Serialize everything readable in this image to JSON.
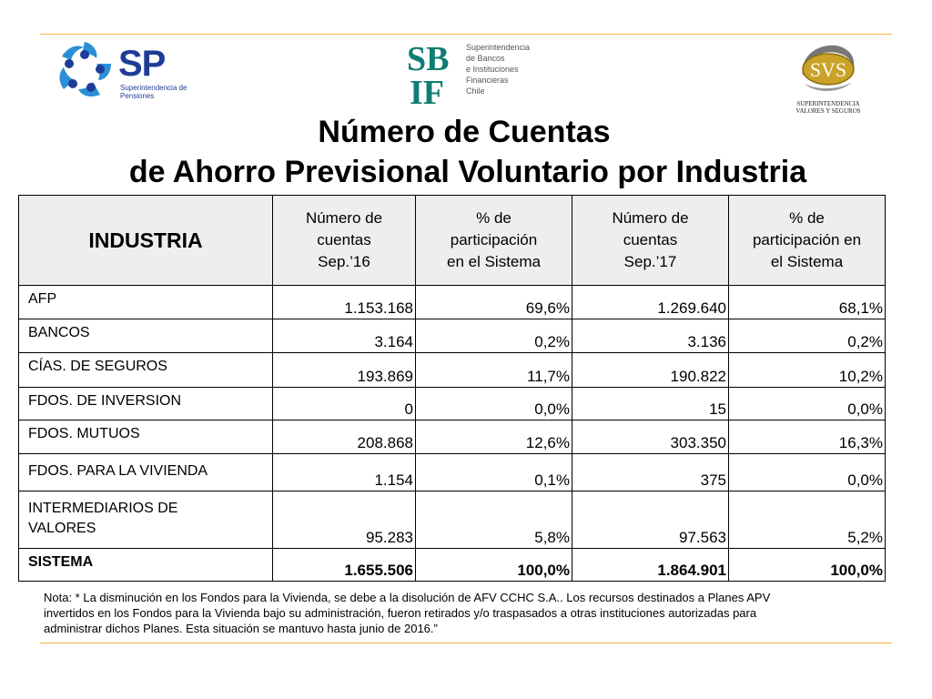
{
  "logos": {
    "sp": {
      "abbr": "SP",
      "subtitle_line1": "Superintendencia de",
      "subtitle_line2": "Pensiones",
      "icon": "hands-star-icon",
      "color": "#1e3c96"
    },
    "sbif": {
      "monogram_top": "SB",
      "monogram_bottom": "IF",
      "lines": [
        "Superintendencia",
        "de Bancos",
        "e Instituciones",
        "Financieras",
        "Chile"
      ],
      "color": "#0f7d72"
    },
    "svs": {
      "abbr": "SVS",
      "caption_line1": "SUPERINTENDENCIA",
      "caption_line2": "VALORES Y SEGUROS",
      "color": "#c9a227"
    }
  },
  "title": {
    "line1": "Número de Cuentas",
    "line2": "de Ahorro Previsional Voluntario por Industria"
  },
  "table": {
    "headers": {
      "industria": "INDUSTRIA",
      "col1": [
        "Número de",
        "cuentas",
        "Sep.’16"
      ],
      "col2": [
        "% de",
        "participación",
        "en el Sistema"
      ],
      "col3": [
        "Número de",
        "cuentas",
        "Sep.’17"
      ],
      "col4": [
        "% de",
        "participación en",
        "el Sistema"
      ]
    },
    "rows": [
      {
        "name": "AFP",
        "c1": "1.153.168",
        "c2": "69,6%",
        "c3": "1.269.640",
        "c4": "68,1%"
      },
      {
        "name": "BANCOS",
        "c1": "3.164",
        "c2": "0,2%",
        "c3": "3.136",
        "c4": "0,2%"
      },
      {
        "name": "CÍAS. DE SEGUROS",
        "c1": "193.869",
        "c2": "11,7%",
        "c3": "190.822",
        "c4": "10,2%"
      },
      {
        "name": "FDOS. DE INVERSION",
        "c1": "0",
        "c2": "0,0%",
        "c3": "15",
        "c4": "0,0%"
      },
      {
        "name": "FDOS. MUTUOS",
        "c1": "208.868",
        "c2": "12,6%",
        "c3": "303.350",
        "c4": "16,3%"
      },
      {
        "name": "FDOS. PARA LA VIVIENDA",
        "c1": "1.154",
        "c2": "0,1%",
        "c3": "375",
        "c4": "0,0%"
      },
      {
        "name_line1": "INTERMEDIARIOS DE",
        "name_line2": "VALORES",
        "c1": "95.283",
        "c2": "5,8%",
        "c3": "97.563",
        "c4": "5,2%"
      }
    ],
    "total": {
      "name": "SISTEMA",
      "c1": "1.655.506",
      "c2": "100,0%",
      "c3": "1.864.901",
      "c4": "100,0%"
    }
  },
  "note": {
    "line1": "Nota: * La disminución en los Fondos para la Vivienda, se debe a la disolución de AFV CCHC S.A.. Los recursos destinados a Planes APV",
    "line2": "invertidos en los Fondos para la Vivienda bajo su administración, fueron retirados y/o traspasados a otras instituciones autorizadas para",
    "line3": "administrar dichos Planes. Esta situación se mantuvo hasta junio de 2016.”"
  },
  "colors": {
    "rule": "#f2b13b",
    "header_bg": "#eeeeee"
  }
}
